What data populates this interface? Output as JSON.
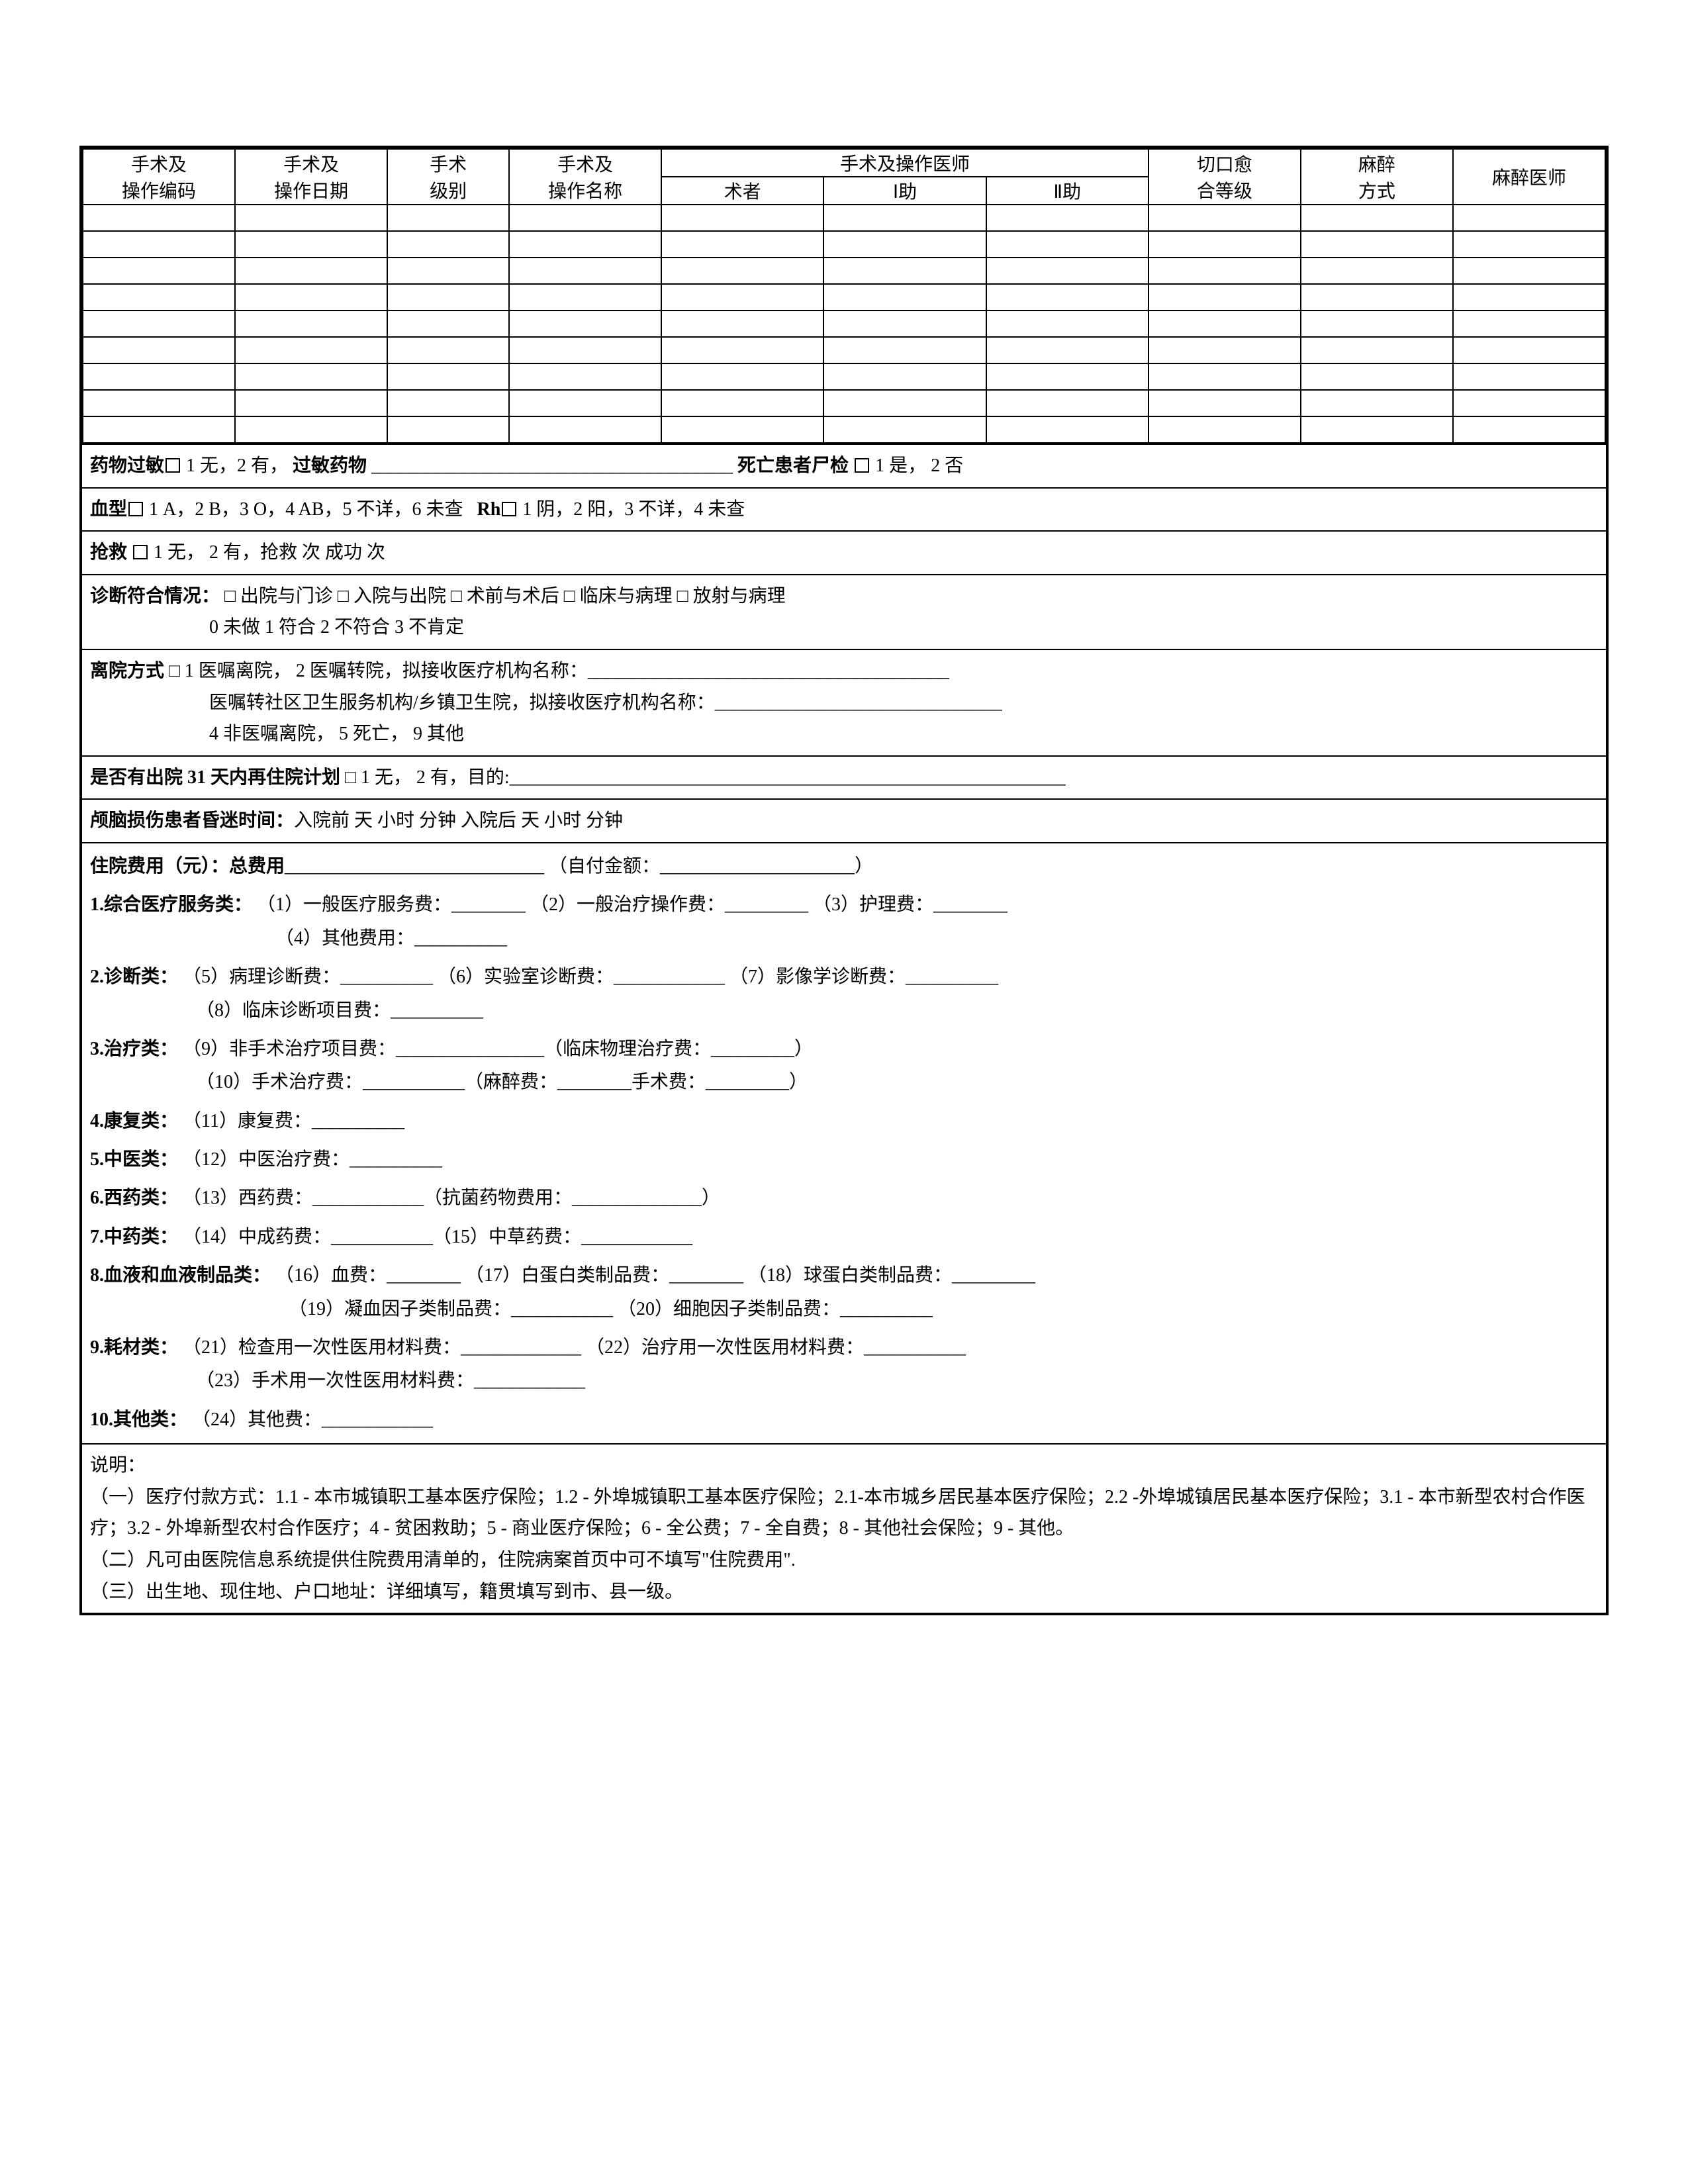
{
  "surgery_table": {
    "headers": {
      "code": "手术及\n操作编码",
      "date": "手术及\n操作日期",
      "level": "手术\n级别",
      "name": "手术及\n操作名称",
      "doctor_group": "手术及操作医师",
      "surgeon": "术者",
      "assist1": "Ⅰ助",
      "assist2": "Ⅱ助",
      "incision": "切口愈\n合等级",
      "anesthesia": "麻醉\n方式",
      "anesthetist": "麻醉医师"
    },
    "row_count": 9
  },
  "allergy": {
    "label": "药物过敏",
    "options": " 1 无，2 有，",
    "drugs_label": "过敏药物",
    "autopsy_label": "死亡患者尸检",
    "autopsy_options": " 1 是，   2 否"
  },
  "blood": {
    "label": "血型",
    "types": " 1 A，2 B，3 O，4 AB，5 不详，6 未查",
    "rh_label": "Rh",
    "rh_options": " 1 阴，2 阳，3 不详，4 未查"
  },
  "rescue": {
    "label": "抢救",
    "line": " 1 无，  2 有，抢救         次         成功         次"
  },
  "diagnosis": {
    "label": "诊断符合情况：",
    "row1": "  □  出院与门诊      □  入院与出院      □  术前与术后      □  临床与病理      □  放射与病理",
    "row2": "0  未做        1  符合         2  不符合       3  不肯定"
  },
  "discharge": {
    "label": "离院方式",
    "line1": " □  1 医嘱离院，   2 医嘱转院，拟接收医疗机构名称：_______________________________________",
    "line2": "医嘱转社区卫生服务机构/乡镇卫生院，拟接收医疗机构名称：_______________________________",
    "line3": "4 非医嘱离院，     5 死亡，  9 其他"
  },
  "readmit": {
    "label": "是否有出院 31 天内再住院计划",
    "options": " □  1 无，   2 有，目的:____________________________________________________________"
  },
  "coma": {
    "label": "颅脑损伤患者昏迷时间：",
    "line": "入院前         天         小时         分钟      入院后         天         小时         分钟"
  },
  "fees": {
    "header": {
      "label": "住院费用（元）：总费用",
      "self_label": "（自付金额：",
      "close": "）"
    },
    "cat1": {
      "label": "1.综合医疗服务类：",
      "i1": "（1）一般医疗服务费：________",
      "i2": "（2）一般治疗操作费：_________",
      "i3": "（3）护理费：________",
      "i4": "（4）其他费用：__________"
    },
    "cat2": {
      "label": "2.诊断类：",
      "i5": "（5）病理诊断费：__________",
      "i6": "（6）实验室诊断费：____________",
      "i7": "（7）影像学诊断费：__________",
      "i8": "（8）临床诊断项目费：__________"
    },
    "cat3": {
      "label": "3.治疗类：",
      "i9": "（9）非手术治疗项目费：________________（临床物理治疗费：_________）",
      "i10": "（10）手术治疗费：___________（麻醉费：________手术费：_________）"
    },
    "cat4": {
      "label": "4.康复类：",
      "i11": "（11）康复费：__________"
    },
    "cat5": {
      "label": "5.中医类：",
      "i12": "（12）中医治疗费：__________"
    },
    "cat6": {
      "label": "6.西药类：",
      "i13": "（13）西药费：____________（抗菌药物费用：______________）"
    },
    "cat7": {
      "label": "7.中药类：",
      "i14": "（14）中成药费：___________（15）中草药费：____________"
    },
    "cat8": {
      "label": "8.血液和血液制品类：",
      "i16": "（16）血费：________",
      "i17": "（17）白蛋白类制品费：________",
      "i18": "（18）球蛋白类制品费：_________",
      "i19": "（19）凝血因子类制品费：___________",
      "i20": "（20）细胞因子类制品费：__________"
    },
    "cat9": {
      "label": "9.耗材类：",
      "i21": "（21）检查用一次性医用材料费：_____________",
      "i22": "（22）治疗用一次性医用材料费：___________",
      "i23": "（23）手术用一次性医用材料费：____________"
    },
    "cat10": {
      "label": "10.其他类：",
      "i24": "（24）其他费：____________"
    }
  },
  "notes": {
    "title": "说明：",
    "n1": "（一）医疗付款方式：1.1 - 本市城镇职工基本医疗保险；1.2 - 外埠城镇职工基本医疗保险；2.1-本市城乡居民基本医疗保险；2.2 -外埠城镇居民基本医疗保险；3.1 - 本市新型农村合作医疗；3.2 - 外埠新型农村合作医疗；4 - 贫困救助；5 - 商业医疗保险；6 - 全公费；7 - 全自费；8 - 其他社会保险；9 - 其他。",
    "n2": "（二）凡可由医院信息系统提供住院费用清单的，住院病案首页中可不填写\"住院费用\".",
    "n3": "（三）出生地、现住地、户口地址：详细填写，籍贯填写到市、县一级。"
  }
}
